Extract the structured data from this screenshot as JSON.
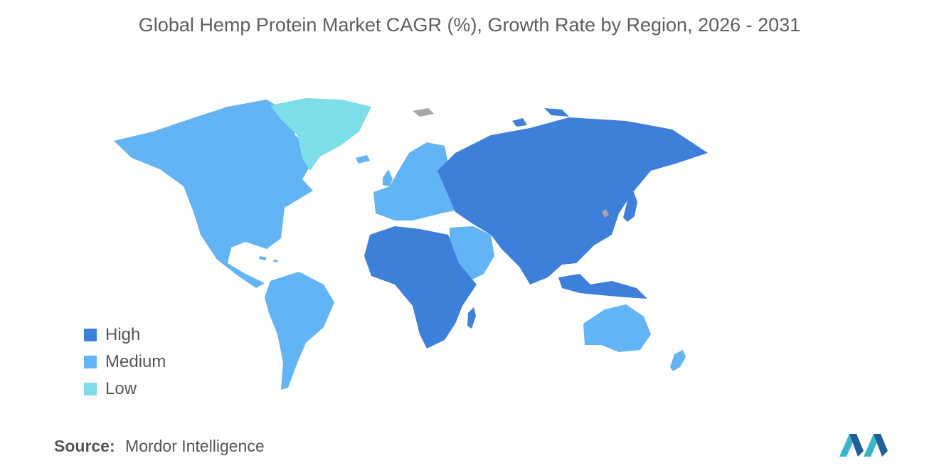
{
  "title": "Global Hemp Protein Market CAGR (%), Growth Rate by Region, 2026 - 2031",
  "colors": {
    "high": "#3d7fd9",
    "medium": "#62b4f5",
    "low": "#7ddde9",
    "no_data": "#a6a6a6"
  },
  "legend": [
    {
      "label": "High",
      "color": "#3d7fd9"
    },
    {
      "label": "Medium",
      "color": "#62b4f5"
    },
    {
      "label": "Low",
      "color": "#7ddde9"
    }
  ],
  "regions": [
    {
      "name": "North America",
      "level": "Medium"
    },
    {
      "name": "South America",
      "level": "Medium"
    },
    {
      "name": "Europe",
      "level": "Medium"
    },
    {
      "name": "Middle East",
      "level": "Medium"
    },
    {
      "name": "Australia & New Zealand",
      "level": "Medium"
    },
    {
      "name": "Greenland",
      "level": "Low"
    },
    {
      "name": "Africa",
      "level": "High"
    },
    {
      "name": "Asia-Pacific",
      "level": "High"
    },
    {
      "name": "Russia",
      "level": "High"
    }
  ],
  "source": {
    "label": "Source:",
    "value": "Mordor Intelligence"
  },
  "logo_icon": "mordor-intelligence-logo-icon"
}
